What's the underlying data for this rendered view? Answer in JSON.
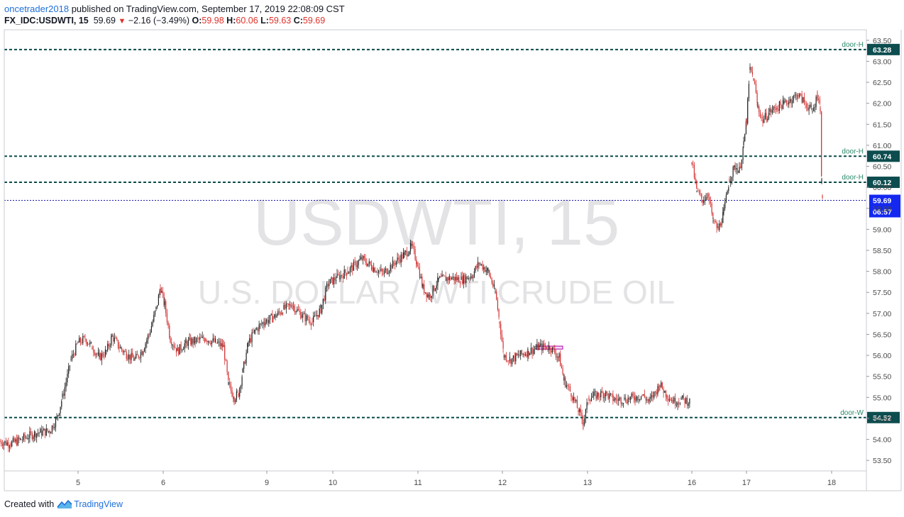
{
  "header": {
    "author": "oncetrader2018",
    "published_text": "published on TradingView.com, September 17, 2019 22:08:09 CST",
    "symbol": "FX_IDC:USDWTI, 15",
    "last": "59.69",
    "change": "−2.16 (−3.49%)",
    "o_label": "O:",
    "o": "59.98",
    "h_label": "H:",
    "h": "60.06",
    "l_label": "L:",
    "l": "59.63",
    "c_label": "C:",
    "c": "59.69"
  },
  "watermark": {
    "line1": "USDWTI, 15",
    "line2": "U.S. DOLLAR / WTI CRUDE OIL"
  },
  "footer": {
    "created_with": "Created with",
    "brand": "TradingView"
  },
  "colors": {
    "up": "#1f1f1f",
    "down": "#d32f2f",
    "level_line": "#0b4b4b",
    "price_line": "#1a1aa8",
    "price_label_bg": "#1428f0",
    "level_label_bg": "#0d4d4f",
    "text_link": "#1e6fd9"
  },
  "chart_data": {
    "type": "candlestick",
    "ylim": [
      53.25,
      63.75
    ],
    "y_ticks": [
      "53.50",
      "54.00",
      "54.50",
      "55.00",
      "55.50",
      "56.00",
      "56.50",
      "57.00",
      "57.50",
      "58.00",
      "58.50",
      "59.00",
      "59.50",
      "60.00",
      "60.50",
      "61.00",
      "61.50",
      "62.00",
      "62.50",
      "63.00",
      "63.50"
    ],
    "x_ticks": [
      "5",
      "6",
      "9",
      "10",
      "11",
      "12",
      "13",
      "16",
      "17",
      "18"
    ],
    "price_path": [
      [
        0,
        53.95
      ],
      [
        15,
        53.9
      ],
      [
        30,
        54.0
      ],
      [
        50,
        54.15
      ],
      [
        70,
        54.2
      ],
      [
        80,
        54.5
      ],
      [
        88,
        55.0
      ],
      [
        95,
        55.5
      ],
      [
        100,
        55.9
      ],
      [
        110,
        56.3
      ],
      [
        120,
        56.4
      ],
      [
        130,
        56.2
      ],
      [
        140,
        55.95
      ],
      [
        150,
        56.1
      ],
      [
        158,
        56.45
      ],
      [
        168,
        56.2
      ],
      [
        180,
        56.0
      ],
      [
        190,
        55.9
      ],
      [
        200,
        56.1
      ],
      [
        210,
        56.5
      ],
      [
        220,
        57.1
      ],
      [
        226,
        57.6
      ],
      [
        232,
        57.2
      ],
      [
        240,
        56.4
      ],
      [
        250,
        56.1
      ],
      [
        262,
        56.3
      ],
      [
        275,
        56.35
      ],
      [
        290,
        56.4
      ],
      [
        305,
        56.3
      ],
      [
        315,
        56.2
      ],
      [
        322,
        55.3
      ],
      [
        330,
        55.0
      ],
      [
        336,
        55.1
      ],
      [
        342,
        55.6
      ],
      [
        350,
        56.3
      ],
      [
        360,
        56.6
      ],
      [
        372,
        56.8
      ],
      [
        385,
        56.9
      ],
      [
        400,
        57.1
      ],
      [
        412,
        57.2
      ],
      [
        425,
        56.95
      ],
      [
        440,
        56.8
      ],
      [
        452,
        57.1
      ],
      [
        462,
        57.7
      ],
      [
        475,
        57.85
      ],
      [
        490,
        58.0
      ],
      [
        510,
        58.3
      ],
      [
        525,
        58.1
      ],
      [
        540,
        57.95
      ],
      [
        555,
        58.2
      ],
      [
        570,
        58.4
      ],
      [
        580,
        58.6
      ],
      [
        588,
        58.2
      ],
      [
        596,
        57.6
      ],
      [
        605,
        57.4
      ],
      [
        618,
        57.8
      ],
      [
        635,
        57.85
      ],
      [
        650,
        57.8
      ],
      [
        665,
        57.9
      ],
      [
        675,
        58.2
      ],
      [
        688,
        58.0
      ],
      [
        698,
        57.5
      ],
      [
        704,
        56.8
      ],
      [
        710,
        56.0
      ],
      [
        720,
        55.9
      ],
      [
        732,
        56.0
      ],
      [
        745,
        56.1
      ],
      [
        760,
        56.2
      ],
      [
        775,
        56.2
      ],
      [
        788,
        55.95
      ],
      [
        795,
        55.4
      ],
      [
        805,
        55.1
      ],
      [
        815,
        54.7
      ],
      [
        822,
        54.4
      ],
      [
        830,
        55.0
      ],
      [
        840,
        55.05
      ],
      [
        852,
        55.1
      ],
      [
        865,
        54.95
      ],
      [
        880,
        54.95
      ],
      [
        895,
        55.0
      ],
      [
        905,
        55.05
      ],
      [
        915,
        54.9
      ],
      [
        930,
        55.3
      ],
      [
        940,
        55.05
      ],
      [
        950,
        54.9
      ],
      [
        960,
        54.95
      ],
      [
        972,
        54.9
      ],
      null,
      [
        975,
        60.6
      ],
      [
        982,
        59.9
      ],
      [
        990,
        59.7
      ],
      [
        998,
        59.85
      ],
      [
        1005,
        59.2
      ],
      [
        1012,
        59.0
      ],
      [
        1020,
        59.4
      ],
      [
        1028,
        60.2
      ],
      [
        1036,
        60.5
      ],
      [
        1042,
        60.4
      ],
      [
        1048,
        61.0
      ],
      [
        1052,
        61.6
      ],
      [
        1057,
        62.8
      ],
      [
        1062,
        62.6
      ],
      [
        1068,
        61.9
      ],
      [
        1075,
        61.6
      ],
      [
        1085,
        61.8
      ],
      [
        1095,
        61.9
      ],
      [
        1105,
        62.0
      ],
      [
        1115,
        62.1
      ],
      [
        1125,
        62.2
      ],
      [
        1135,
        62.0
      ],
      [
        1145,
        61.8
      ],
      [
        1152,
        62.2
      ],
      [
        1156,
        61.9
      ],
      [
        1158,
        60.1
      ],
      [
        1159,
        59.8
      ],
      [
        1160,
        59.69
      ]
    ],
    "levels": [
      {
        "value": 63.28,
        "label": "63.28",
        "tag": "door-H"
      },
      {
        "value": 60.74,
        "label": "60.74",
        "tag": "door-H"
      },
      {
        "value": 60.12,
        "label": "60.12",
        "tag": "door-H"
      },
      {
        "value": 54.52,
        "label": "54.52",
        "tag": "door-W"
      }
    ],
    "last_price": {
      "value": 59.69,
      "label": "59.69",
      "countdown": "06:57"
    },
    "box_annotation": {
      "y_top": 56.22,
      "y_bottom": 56.15
    }
  }
}
